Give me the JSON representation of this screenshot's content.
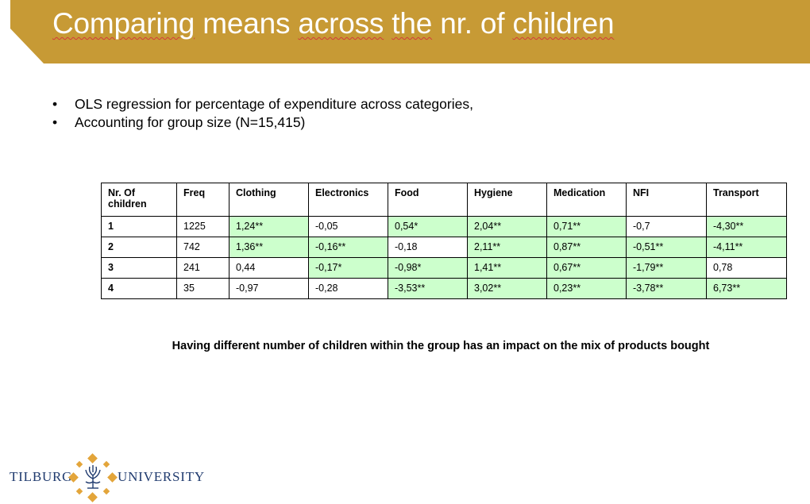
{
  "slide": {
    "title_words": [
      "Comparing",
      "means",
      "across",
      "the",
      "nr.",
      "of",
      "children"
    ],
    "bullets": [
      "OLS regression for percentage of expenditure across categories,",
      "Accounting for group size (N=15,415)"
    ],
    "bullet_symbol": "•",
    "conclusion": "Having different number of children within the group has an impact on the mix of products bought"
  },
  "table": {
    "headers": [
      "Nr. Of children",
      "Freq",
      "Clothing",
      "Electronics",
      "Food",
      "Hygiene",
      "Medication",
      "NFI",
      "Transport"
    ],
    "rows": [
      {
        "label": "1",
        "freq": "1225",
        "cells": [
          "1,24**",
          "-0,05",
          "0,54*",
          "2,04**",
          "0,71**",
          "-0,7",
          "-4,30**"
        ]
      },
      {
        "label": "2",
        "freq": "742",
        "cells": [
          "1,36**",
          "-0,16**",
          "-0,18",
          "2,11**",
          "0,87**",
          "-0,51**",
          "-4,11**"
        ]
      },
      {
        "label": "3",
        "freq": "241",
        "cells": [
          "0,44",
          "-0,17*",
          "-0,98*",
          "1,41**",
          "0,67**",
          "-1,79**",
          "0,78"
        ]
      },
      {
        "label": "4",
        "freq": "35",
        "cells": [
          "-0,97",
          "-0,28",
          "-3,53**",
          "3,02**",
          "0,23**",
          "-3,78**",
          "6,73**"
        ]
      }
    ]
  },
  "logo": {
    "left_text": "TILBURG",
    "right_text": "UNIVERSITY",
    "mark_icon": "tilburg-tree-emblem-icon"
  },
  "colors": {
    "banner": "#c79a35",
    "highlight": "#ccffcc",
    "logo_text": "#1f3a6e",
    "logo_diamond": "#e3a53a"
  }
}
